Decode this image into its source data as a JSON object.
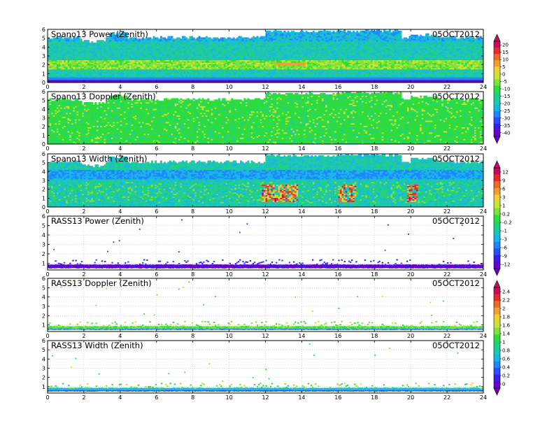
{
  "chart_data": [
    {
      "type": "heatmap",
      "title": "Spano13 Power (Zenith)",
      "date": "05OCT2012",
      "x_ticks": [
        "0",
        "2",
        "4",
        "6",
        "8",
        "10",
        "12",
        "14",
        "16",
        "18",
        "20",
        "22",
        "24"
      ],
      "y_ticks": [
        "0",
        "1",
        "2",
        "3",
        "4",
        "5",
        "6"
      ],
      "xlim": [
        0,
        24
      ],
      "ylim": [
        0,
        6
      ],
      "grid": true
    },
    {
      "type": "heatmap",
      "title": "Spano13 Doppler (Zenith)",
      "date": "05OCT2012",
      "x_ticks": [
        "0",
        "2",
        "4",
        "6",
        "8",
        "10",
        "12",
        "14",
        "16",
        "18",
        "20",
        "22",
        "24"
      ],
      "y_ticks": [
        "0",
        "1",
        "2",
        "3",
        "4",
        "5",
        "6"
      ],
      "xlim": [
        0,
        24
      ],
      "ylim": [
        0,
        6
      ],
      "grid": true
    },
    {
      "type": "heatmap",
      "title": "Spano13 Width (Zenith)",
      "date": "05OCT2012",
      "x_ticks": [
        "0",
        "2",
        "4",
        "6",
        "8",
        "10",
        "12",
        "14",
        "16",
        "18",
        "20",
        "22",
        "24"
      ],
      "y_ticks": [
        "0",
        "1",
        "2",
        "3",
        "4",
        "5",
        "6"
      ],
      "xlim": [
        0,
        24
      ],
      "ylim": [
        0,
        6
      ],
      "grid": true
    },
    {
      "type": "scatter",
      "title": "RASS13 Power (Zenith)",
      "date": "05OCT2012",
      "x_ticks": [
        "0",
        "2",
        "4",
        "6",
        "8",
        "10",
        "12",
        "14",
        "16",
        "18",
        "20",
        "22",
        "24"
      ],
      "y_ticks": [
        "1",
        "2",
        "3",
        "4",
        "5",
        "6"
      ],
      "xlim": [
        0,
        24
      ],
      "ylim": [
        0.3,
        6
      ],
      "grid": true
    },
    {
      "type": "scatter",
      "title": "RASS13 Doppler (Zenith)",
      "date": "05OCT2012",
      "x_ticks": [
        "0",
        "2",
        "4",
        "6",
        "8",
        "10",
        "12",
        "14",
        "16",
        "18",
        "20",
        "22",
        "24"
      ],
      "y_ticks": [
        "1",
        "2",
        "3",
        "4",
        "5",
        "6"
      ],
      "xlim": [
        0,
        24
      ],
      "ylim": [
        0.3,
        6
      ],
      "grid": true
    },
    {
      "type": "scatter",
      "title": "RASS13 Width (Zenith)",
      "date": "05OCT2012",
      "x_ticks": [
        "0",
        "2",
        "4",
        "6",
        "8",
        "10",
        "12",
        "14",
        "16",
        "18",
        "20",
        "22",
        "24"
      ],
      "y_ticks": [
        "1",
        "2",
        "3",
        "4",
        "5",
        "6"
      ],
      "xlim": [
        0,
        24
      ],
      "ylim": [
        0.3,
        6
      ],
      "grid": true
    }
  ],
  "colorbars": [
    {
      "labels": [
        "20",
        "15",
        "10",
        "5",
        "0",
        "-5",
        "-10",
        "-15",
        "-20",
        "-25",
        "-30",
        "-35",
        "-40"
      ]
    },
    {
      "labels": [
        "12",
        "9",
        "6",
        "3",
        "1",
        "0.2",
        "-0.2",
        "-1",
        "-3",
        "-6",
        "-9",
        "-12"
      ]
    },
    {
      "labels": [
        "2.4",
        "2.2",
        "2",
        "1.8",
        "1.6",
        "1.4",
        "1",
        "0.8",
        "0.6",
        "0.4",
        "0.2",
        "0"
      ]
    }
  ],
  "colors": {
    "palette": [
      "#6a00c8",
      "#3a1ee6",
      "#2b4cff",
      "#1f86ff",
      "#18b6e6",
      "#1ec8b0",
      "#22d27a",
      "#2edc3c",
      "#7ee23a",
      "#c8e43a",
      "#ecd23a",
      "#f0a030",
      "#ec6a2a",
      "#e82a2a",
      "#c80a5a"
    ],
    "grid": "#bcbcbc"
  }
}
